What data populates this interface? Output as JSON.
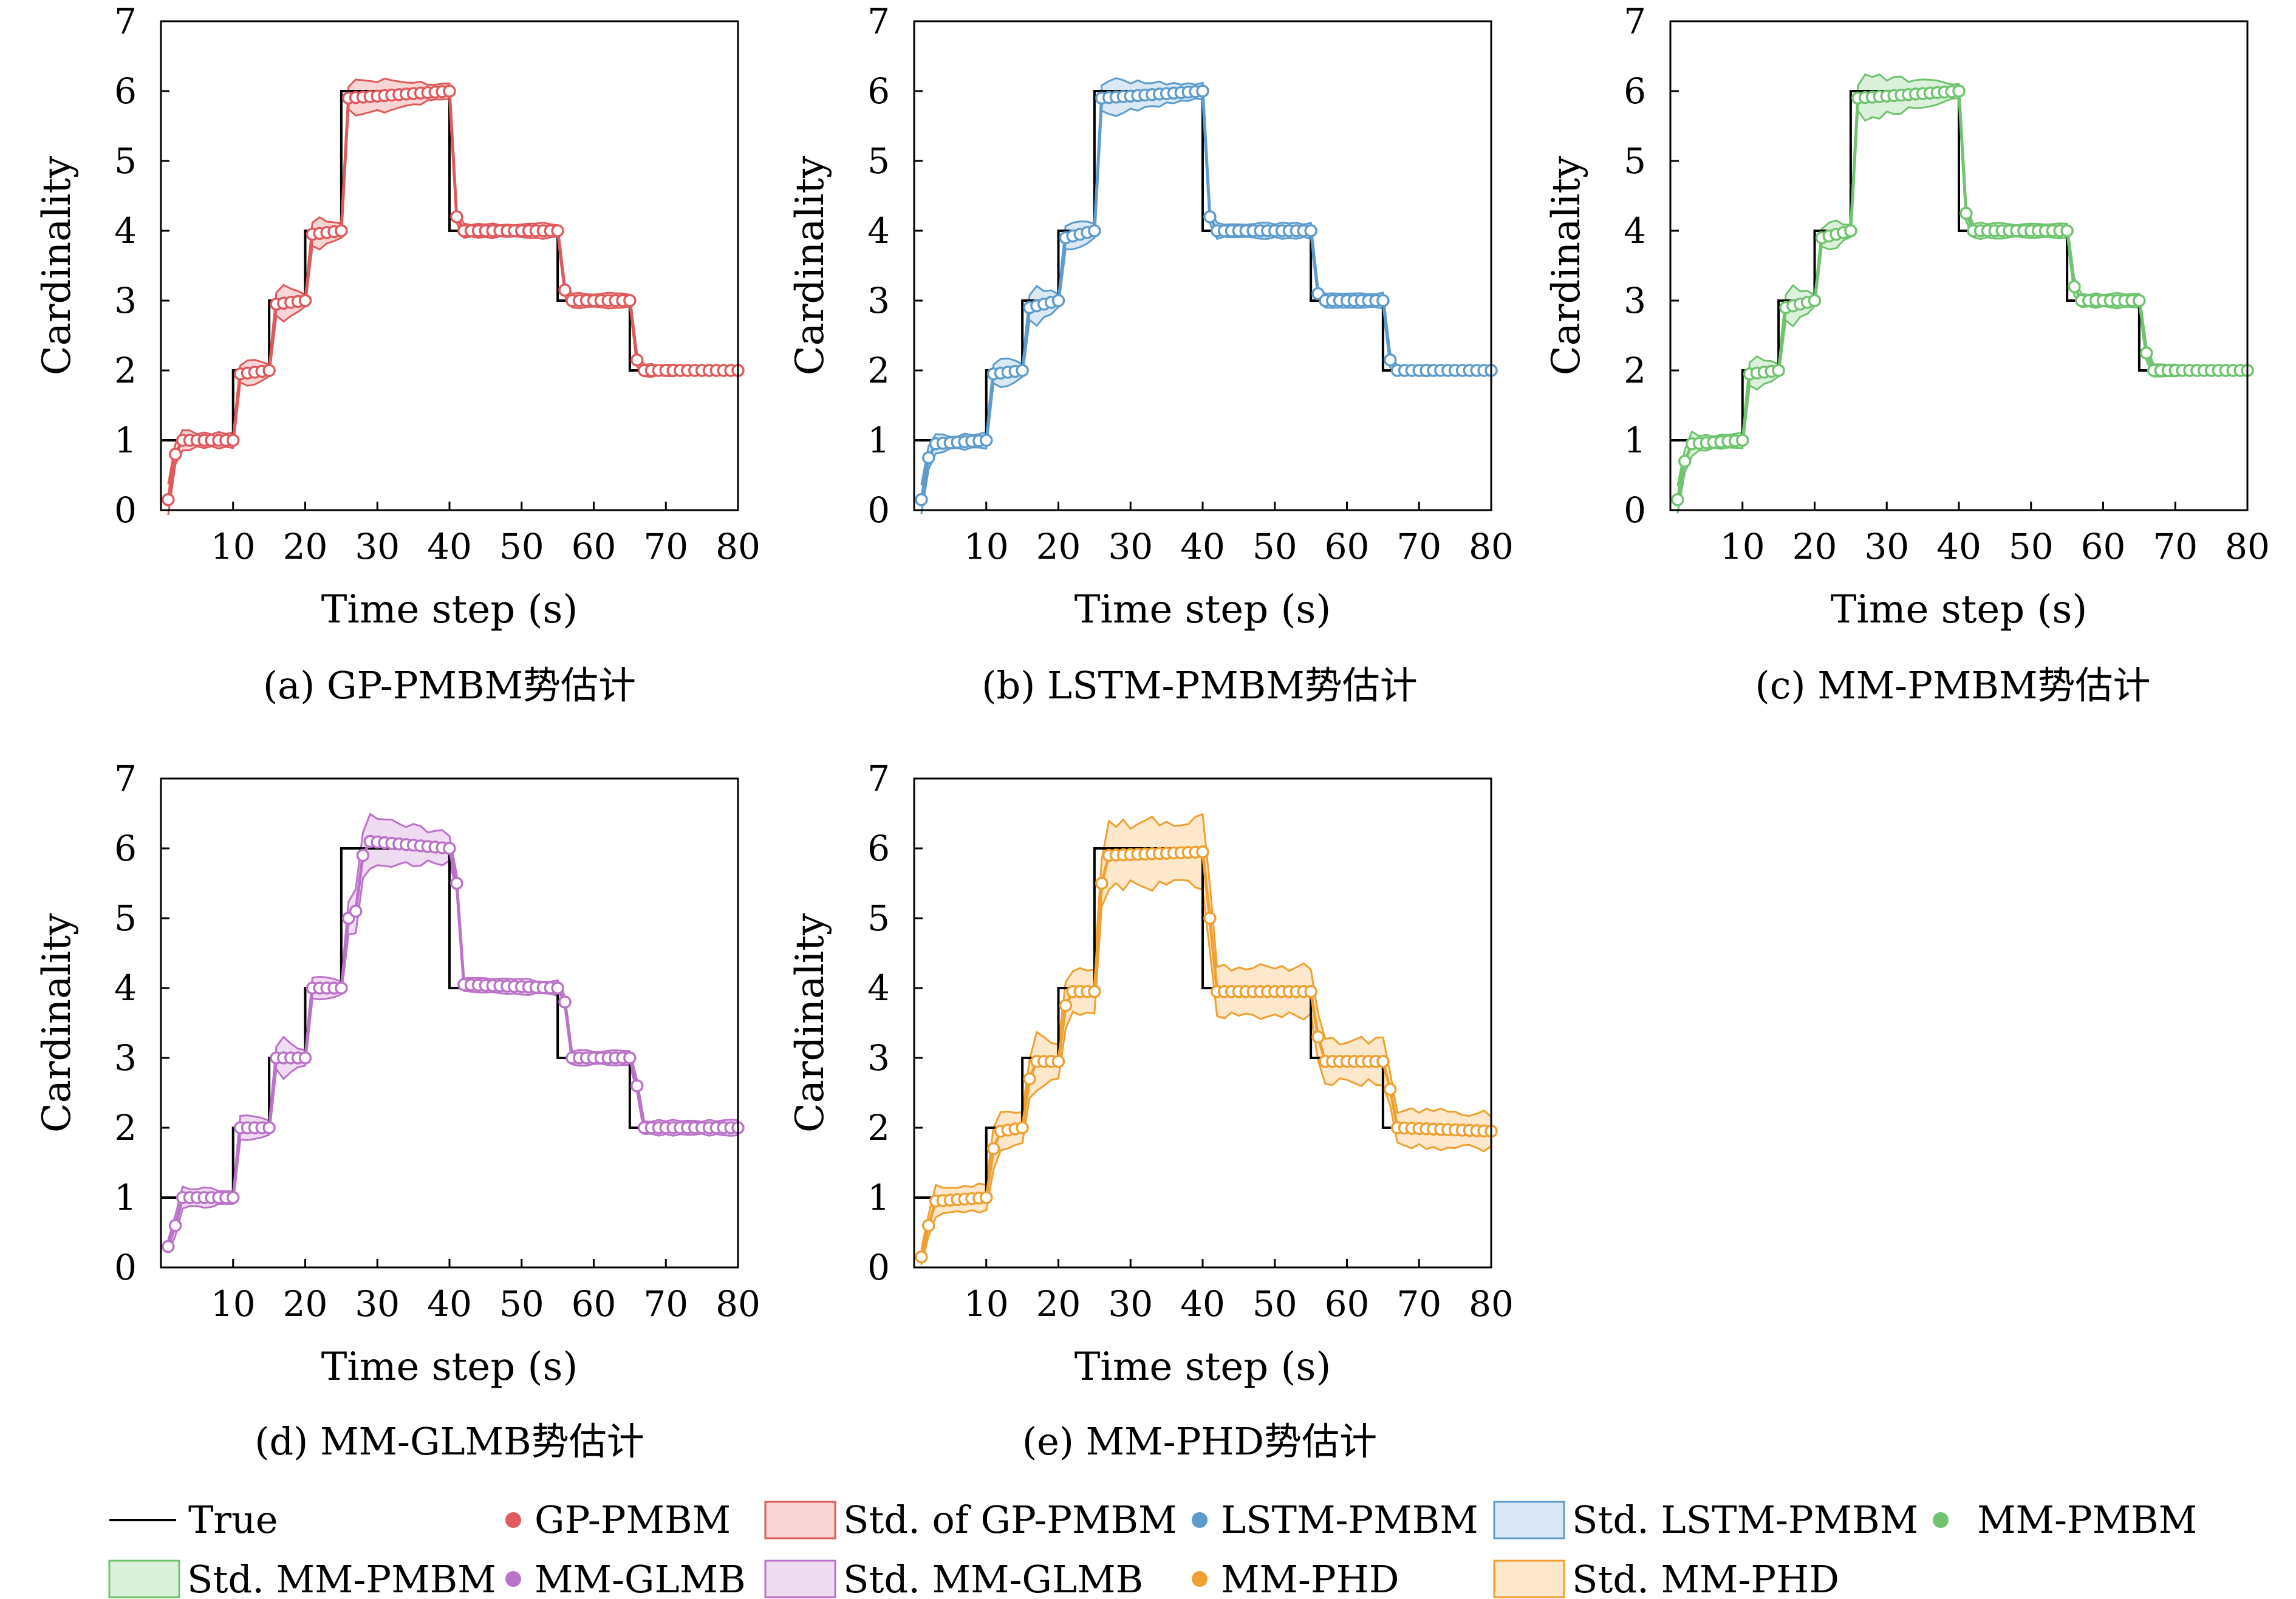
{
  "colors": {
    "true": "#000000",
    "GP-PMBM": "#e05a5c",
    "LSTM-PMBM": "#5e9cce",
    "MM-PMBM": "#6fc46f",
    "MM-GLMB": "#bb73c9",
    "MM-PHD": "#f0a030"
  },
  "fills": {
    "GP-PMBM": "#f9d6d6",
    "LSTM-PMBM": "#dae9f5",
    "MM-PMBM": "#dcf1dc",
    "MM-GLMB": "#efdcf3",
    "MM-PHD": "#fde8cb"
  },
  "legend": {
    "true": "True",
    "gp": "GP-PMBM",
    "gp_std": "Std. of GP-PMBM",
    "lstm": "LSTM-PMBM",
    "lstm_std": "Std. LSTM-PMBM",
    "mm": "MM-PMBM",
    "mm_std": "Std. MM-PMBM",
    "glmb": "MM-GLMB",
    "glmb_std": "Std. MM-GLMB",
    "phd": "MM-PHD",
    "phd_std": "Std. MM-PHD"
  },
  "chart_data": [
    {
      "type": "line",
      "caption": "(a) GP-PMBM势估计",
      "xlabel": "Time step (s)",
      "ylabel": "Cardinality",
      "xlim": [
        0,
        80
      ],
      "ylim": [
        0,
        7
      ],
      "xticks": [
        10,
        20,
        30,
        40,
        50,
        60,
        70,
        80
      ],
      "yticks": [
        0,
        1,
        2,
        3,
        4,
        5,
        6,
        7
      ],
      "series": [
        {
          "name": "True",
          "segments": [
            [
              0,
              1
            ],
            [
              10,
              2
            ],
            [
              15,
              3
            ],
            [
              20,
              4
            ],
            [
              25,
              6
            ],
            [
              40,
              4
            ],
            [
              55,
              3
            ],
            [
              65,
              2
            ]
          ]
        },
        {
          "name": "GP-PMBM",
          "estimate": [
            [
              1,
              0.15
            ],
            [
              2,
              0.8
            ],
            [
              3,
              1.0
            ],
            [
              10,
              1.0
            ],
            [
              11,
              1.95
            ],
            [
              15,
              2.0
            ],
            [
              16,
              2.95
            ],
            [
              20,
              3.0
            ],
            [
              21,
              3.95
            ],
            [
              25,
              4.0
            ],
            [
              26,
              5.9
            ],
            [
              40,
              6.0
            ],
            [
              41,
              4.2
            ],
            [
              42,
              4.0
            ],
            [
              55,
              4.0
            ],
            [
              56,
              3.15
            ],
            [
              57,
              3.0
            ],
            [
              65,
              3.0
            ],
            [
              66,
              2.15
            ],
            [
              67,
              2.0
            ],
            [
              80,
              2.0
            ]
          ],
          "std_width": [
            [
              1,
              0.2
            ],
            [
              5,
              0.1
            ],
            [
              10,
              0.1
            ],
            [
              12,
              0.2
            ],
            [
              15,
              0.1
            ],
            [
              17,
              0.25
            ],
            [
              20,
              0.1
            ],
            [
              22,
              0.2
            ],
            [
              25,
              0.1
            ],
            [
              27,
              0.25
            ],
            [
              40,
              0.1
            ],
            [
              42,
              0.1
            ],
            [
              55,
              0.1
            ],
            [
              57,
              0.1
            ],
            [
              65,
              0.1
            ],
            [
              67,
              0.08
            ],
            [
              80,
              0.05
            ]
          ]
        }
      ]
    },
    {
      "type": "line",
      "caption": "(b) LSTM-PMBM势估计",
      "xlabel": "Time step (s)",
      "ylabel": "Cardinality",
      "xlim": [
        0,
        80
      ],
      "ylim": [
        0,
        7
      ],
      "xticks": [
        10,
        20,
        30,
        40,
        50,
        60,
        70,
        80
      ],
      "yticks": [
        0,
        1,
        2,
        3,
        4,
        5,
        6,
        7
      ],
      "series": [
        {
          "name": "True",
          "segments": [
            [
              0,
              1
            ],
            [
              10,
              2
            ],
            [
              15,
              3
            ],
            [
              20,
              4
            ],
            [
              25,
              6
            ],
            [
              40,
              4
            ],
            [
              55,
              3
            ],
            [
              65,
              2
            ]
          ]
        },
        {
          "name": "LSTM-PMBM",
          "estimate": [
            [
              1,
              0.15
            ],
            [
              2,
              0.75
            ],
            [
              3,
              0.95
            ],
            [
              10,
              1.0
            ],
            [
              11,
              1.95
            ],
            [
              15,
              2.0
            ],
            [
              16,
              2.9
            ],
            [
              20,
              3.0
            ],
            [
              21,
              3.9
            ],
            [
              25,
              4.0
            ],
            [
              26,
              5.9
            ],
            [
              40,
              6.0
            ],
            [
              41,
              4.2
            ],
            [
              42,
              4.0
            ],
            [
              55,
              4.0
            ],
            [
              56,
              3.1
            ],
            [
              57,
              3.0
            ],
            [
              65,
              3.0
            ],
            [
              66,
              2.15
            ],
            [
              67,
              2.0
            ],
            [
              80,
              2.0
            ]
          ],
          "std_width": [
            [
              1,
              0.2
            ],
            [
              5,
              0.1
            ],
            [
              10,
              0.1
            ],
            [
              12,
              0.2
            ],
            [
              15,
              0.1
            ],
            [
              17,
              0.25
            ],
            [
              20,
              0.1
            ],
            [
              22,
              0.2
            ],
            [
              25,
              0.1
            ],
            [
              27,
              0.25
            ],
            [
              40,
              0.1
            ],
            [
              42,
              0.1
            ],
            [
              55,
              0.1
            ],
            [
              57,
              0.1
            ],
            [
              65,
              0.1
            ],
            [
              67,
              0.08
            ],
            [
              80,
              0.05
            ]
          ]
        }
      ]
    },
    {
      "type": "line",
      "caption": "(c) MM-PMBM势估计",
      "xlabel": "Time step (s)",
      "ylabel": "Cardinality",
      "xlim": [
        0,
        80
      ],
      "ylim": [
        0,
        7
      ],
      "xticks": [
        10,
        20,
        30,
        40,
        50,
        60,
        70,
        80
      ],
      "yticks": [
        0,
        1,
        2,
        3,
        4,
        5,
        6,
        7
      ],
      "series": [
        {
          "name": "True",
          "segments": [
            [
              0,
              1
            ],
            [
              10,
              2
            ],
            [
              15,
              3
            ],
            [
              20,
              4
            ],
            [
              25,
              6
            ],
            [
              40,
              4
            ],
            [
              55,
              3
            ],
            [
              65,
              2
            ]
          ]
        },
        {
          "name": "MM-PMBM",
          "estimate": [
            [
              1,
              0.15
            ],
            [
              2,
              0.7
            ],
            [
              3,
              0.95
            ],
            [
              10,
              1.0
            ],
            [
              11,
              1.95
            ],
            [
              15,
              2.0
            ],
            [
              16,
              2.9
            ],
            [
              20,
              3.0
            ],
            [
              21,
              3.9
            ],
            [
              25,
              4.0
            ],
            [
              26,
              5.9
            ],
            [
              40,
              6.0
            ],
            [
              41,
              4.25
            ],
            [
              42,
              4.0
            ],
            [
              55,
              4.0
            ],
            [
              56,
              3.2
            ],
            [
              57,
              3.0
            ],
            [
              65,
              3.0
            ],
            [
              66,
              2.25
            ],
            [
              67,
              2.0
            ],
            [
              80,
              2.0
            ]
          ],
          "std_width": [
            [
              1,
              0.2
            ],
            [
              5,
              0.1
            ],
            [
              10,
              0.1
            ],
            [
              12,
              0.2
            ],
            [
              15,
              0.1
            ],
            [
              17,
              0.25
            ],
            [
              20,
              0.1
            ],
            [
              22,
              0.2
            ],
            [
              25,
              0.1
            ],
            [
              27,
              0.3
            ],
            [
              40,
              0.1
            ],
            [
              42,
              0.1
            ],
            [
              55,
              0.1
            ],
            [
              57,
              0.1
            ],
            [
              65,
              0.1
            ],
            [
              67,
              0.08
            ],
            [
              80,
              0.05
            ]
          ]
        }
      ]
    },
    {
      "type": "line",
      "caption": "(d) MM-GLMB势估计",
      "xlabel": "Time step (s)",
      "ylabel": "Cardinality",
      "xlim": [
        0,
        80
      ],
      "ylim": [
        0,
        7
      ],
      "xticks": [
        10,
        20,
        30,
        40,
        50,
        60,
        70,
        80
      ],
      "yticks": [
        0,
        1,
        2,
        3,
        4,
        5,
        6,
        7
      ],
      "series": [
        {
          "name": "True",
          "segments": [
            [
              0,
              1
            ],
            [
              10,
              2
            ],
            [
              15,
              3
            ],
            [
              20,
              4
            ],
            [
              25,
              6
            ],
            [
              40,
              4
            ],
            [
              55,
              3
            ],
            [
              65,
              2
            ]
          ]
        },
        {
          "name": "MM-GLMB",
          "estimate": [
            [
              1,
              0.3
            ],
            [
              2,
              0.6
            ],
            [
              3,
              1.0
            ],
            [
              10,
              1.0
            ],
            [
              11,
              2.0
            ],
            [
              15,
              2.0
            ],
            [
              16,
              3.0
            ],
            [
              20,
              3.0
            ],
            [
              21,
              4.0
            ],
            [
              25,
              4.0
            ],
            [
              26,
              5.0
            ],
            [
              27,
              5.1
            ],
            [
              28,
              5.9
            ],
            [
              29,
              6.1
            ],
            [
              40,
              6.0
            ],
            [
              41,
              5.5
            ],
            [
              42,
              4.05
            ],
            [
              55,
              4.0
            ],
            [
              56,
              3.8
            ],
            [
              57,
              3.0
            ],
            [
              65,
              3.0
            ],
            [
              66,
              2.6
            ],
            [
              67,
              2.0
            ],
            [
              80,
              2.0
            ]
          ],
          "std_width": [
            [
              1,
              0.1
            ],
            [
              3,
              0.15
            ],
            [
              10,
              0.1
            ],
            [
              12,
              0.2
            ],
            [
              15,
              0.1
            ],
            [
              17,
              0.25
            ],
            [
              20,
              0.1
            ],
            [
              22,
              0.2
            ],
            [
              25,
              0.1
            ],
            [
              27,
              0.3
            ],
            [
              29,
              0.35
            ],
            [
              40,
              0.2
            ],
            [
              42,
              0.1
            ],
            [
              55,
              0.1
            ],
            [
              57,
              0.1
            ],
            [
              65,
              0.1
            ],
            [
              67,
              0.1
            ],
            [
              80,
              0.1
            ]
          ]
        }
      ]
    },
    {
      "type": "line",
      "caption": "(e) MM-PHD势估计",
      "xlabel": "Time step (s)",
      "ylabel": "Cardinality",
      "xlim": [
        0,
        80
      ],
      "ylim": [
        0,
        7
      ],
      "xticks": [
        10,
        20,
        30,
        40,
        50,
        60,
        70,
        80
      ],
      "yticks": [
        0,
        1,
        2,
        3,
        4,
        5,
        6,
        7
      ],
      "series": [
        {
          "name": "True",
          "segments": [
            [
              0,
              1
            ],
            [
              10,
              2
            ],
            [
              15,
              3
            ],
            [
              20,
              4
            ],
            [
              25,
              6
            ],
            [
              40,
              4
            ],
            [
              55,
              3
            ],
            [
              65,
              2
            ]
          ]
        },
        {
          "name": "MM-PHD",
          "estimate": [
            [
              1,
              0.15
            ],
            [
              2,
              0.6
            ],
            [
              3,
              0.95
            ],
            [
              10,
              1.0
            ],
            [
              11,
              1.7
            ],
            [
              12,
              1.95
            ],
            [
              15,
              2.0
            ],
            [
              16,
              2.7
            ],
            [
              17,
              2.95
            ],
            [
              20,
              2.95
            ],
            [
              21,
              3.75
            ],
            [
              22,
              3.95
            ],
            [
              25,
              3.95
            ],
            [
              26,
              5.5
            ],
            [
              27,
              5.9
            ],
            [
              40,
              5.95
            ],
            [
              41,
              5.0
            ],
            [
              42,
              3.95
            ],
            [
              55,
              3.95
            ],
            [
              56,
              3.3
            ],
            [
              57,
              2.95
            ],
            [
              65,
              2.95
            ],
            [
              66,
              2.55
            ],
            [
              67,
              2.0
            ],
            [
              80,
              1.95
            ]
          ],
          "std_width": [
            [
              1,
              0.1
            ],
            [
              3,
              0.2
            ],
            [
              10,
              0.2
            ],
            [
              12,
              0.3
            ],
            [
              15,
              0.2
            ],
            [
              17,
              0.35
            ],
            [
              20,
              0.3
            ],
            [
              22,
              0.35
            ],
            [
              25,
              0.35
            ],
            [
              27,
              0.45
            ],
            [
              40,
              0.45
            ],
            [
              42,
              0.35
            ],
            [
              55,
              0.35
            ],
            [
              57,
              0.3
            ],
            [
              65,
              0.3
            ],
            [
              67,
              0.25
            ],
            [
              80,
              0.25
            ]
          ]
        }
      ]
    }
  ]
}
